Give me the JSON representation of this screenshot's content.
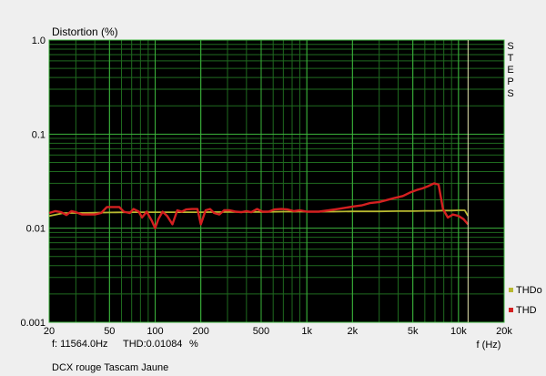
{
  "chart_data": {
    "type": "line",
    "title": "Distortion (%)",
    "xlabel": "f (Hz)",
    "x_scale": "log",
    "y_scale": "log",
    "xlim": [
      20,
      20000
    ],
    "ylim": [
      0.001,
      1.0
    ],
    "x_ticks": [
      {
        "value": 20,
        "label": "20"
      },
      {
        "value": 50,
        "label": "50"
      },
      {
        "value": 100,
        "label": "100"
      },
      {
        "value": 200,
        "label": "200"
      },
      {
        "value": 500,
        "label": "500"
      },
      {
        "value": 1000,
        "label": "1k"
      },
      {
        "value": 2000,
        "label": "2k"
      },
      {
        "value": 5000,
        "label": "5k"
      },
      {
        "value": 10000,
        "label": "10k"
      },
      {
        "value": 20000,
        "label": "20k"
      }
    ],
    "y_ticks": [
      {
        "value": 1.0,
        "label": "1.0"
      },
      {
        "value": 0.1,
        "label": "0.1"
      },
      {
        "value": 0.01,
        "label": "0.01"
      },
      {
        "value": 0.001,
        "label": "0.001"
      }
    ],
    "marker_x": 11564,
    "grid": true,
    "background": "#000000",
    "grid_major_color": "#3cb43c",
    "grid_minor_color": "#1f6a1f",
    "side_label": "STEPS",
    "legend_position": "right",
    "series": [
      {
        "name": "THDo",
        "color": "#b8b830",
        "points": [
          [
            20,
            0.0135
          ],
          [
            25,
            0.0145
          ],
          [
            30,
            0.0145
          ],
          [
            40,
            0.0146
          ],
          [
            50,
            0.0147
          ],
          [
            70,
            0.0148
          ],
          [
            100,
            0.0148
          ],
          [
            150,
            0.0148
          ],
          [
            200,
            0.0148
          ],
          [
            300,
            0.0149
          ],
          [
            500,
            0.0149
          ],
          [
            700,
            0.015
          ],
          [
            1000,
            0.015
          ],
          [
            1500,
            0.015
          ],
          [
            2000,
            0.0151
          ],
          [
            3000,
            0.0151
          ],
          [
            4000,
            0.0152
          ],
          [
            5000,
            0.0152
          ],
          [
            6000,
            0.0153
          ],
          [
            7000,
            0.0153
          ],
          [
            8000,
            0.0154
          ],
          [
            9000,
            0.0154
          ],
          [
            10000,
            0.0155
          ],
          [
            11000,
            0.0155
          ],
          [
            11564,
            0.0135
          ]
        ]
      },
      {
        "name": "THD",
        "color": "#d42020",
        "points": [
          [
            20,
            0.0145
          ],
          [
            22,
            0.0152
          ],
          [
            24,
            0.0148
          ],
          [
            26,
            0.0138
          ],
          [
            28,
            0.0152
          ],
          [
            30,
            0.0148
          ],
          [
            33,
            0.014
          ],
          [
            36,
            0.014
          ],
          [
            40,
            0.014
          ],
          [
            44,
            0.0145
          ],
          [
            48,
            0.0168
          ],
          [
            52,
            0.0168
          ],
          [
            58,
            0.0168
          ],
          [
            62,
            0.015
          ],
          [
            68,
            0.0145
          ],
          [
            72,
            0.016
          ],
          [
            78,
            0.015
          ],
          [
            82,
            0.013
          ],
          [
            88,
            0.015
          ],
          [
            95,
            0.012
          ],
          [
            100,
            0.01
          ],
          [
            105,
            0.0125
          ],
          [
            112,
            0.015
          ],
          [
            120,
            0.0135
          ],
          [
            130,
            0.011
          ],
          [
            140,
            0.0155
          ],
          [
            150,
            0.015
          ],
          [
            160,
            0.0158
          ],
          [
            175,
            0.016
          ],
          [
            190,
            0.016
          ],
          [
            200,
            0.011
          ],
          [
            215,
            0.0155
          ],
          [
            230,
            0.016
          ],
          [
            245,
            0.0145
          ],
          [
            265,
            0.014
          ],
          [
            285,
            0.0155
          ],
          [
            310,
            0.0155
          ],
          [
            340,
            0.015
          ],
          [
            370,
            0.0148
          ],
          [
            400,
            0.0152
          ],
          [
            430,
            0.0148
          ],
          [
            470,
            0.016
          ],
          [
            510,
            0.015
          ],
          [
            560,
            0.015
          ],
          [
            610,
            0.0158
          ],
          [
            680,
            0.016
          ],
          [
            750,
            0.0158
          ],
          [
            820,
            0.0152
          ],
          [
            900,
            0.0155
          ],
          [
            1000,
            0.015
          ],
          [
            1200,
            0.015
          ],
          [
            1400,
            0.0155
          ],
          [
            1600,
            0.016
          ],
          [
            1800,
            0.0165
          ],
          [
            2000,
            0.017
          ],
          [
            2300,
            0.0175
          ],
          [
            2600,
            0.0185
          ],
          [
            3000,
            0.019
          ],
          [
            3400,
            0.02
          ],
          [
            3800,
            0.021
          ],
          [
            4300,
            0.022
          ],
          [
            4800,
            0.024
          ],
          [
            5300,
            0.0255
          ],
          [
            5800,
            0.0265
          ],
          [
            6300,
            0.028
          ],
          [
            6900,
            0.03
          ],
          [
            7400,
            0.029
          ],
          [
            7900,
            0.016
          ],
          [
            8500,
            0.013
          ],
          [
            9200,
            0.014
          ],
          [
            10000,
            0.0135
          ],
          [
            10800,
            0.0125
          ],
          [
            11564,
            0.011
          ]
        ]
      }
    ]
  },
  "readout": {
    "freq": "f: 11564.0Hz",
    "thd": "THD:0.01084",
    "unit": "%"
  },
  "footer": "DCX rouge Tascam Jaune"
}
